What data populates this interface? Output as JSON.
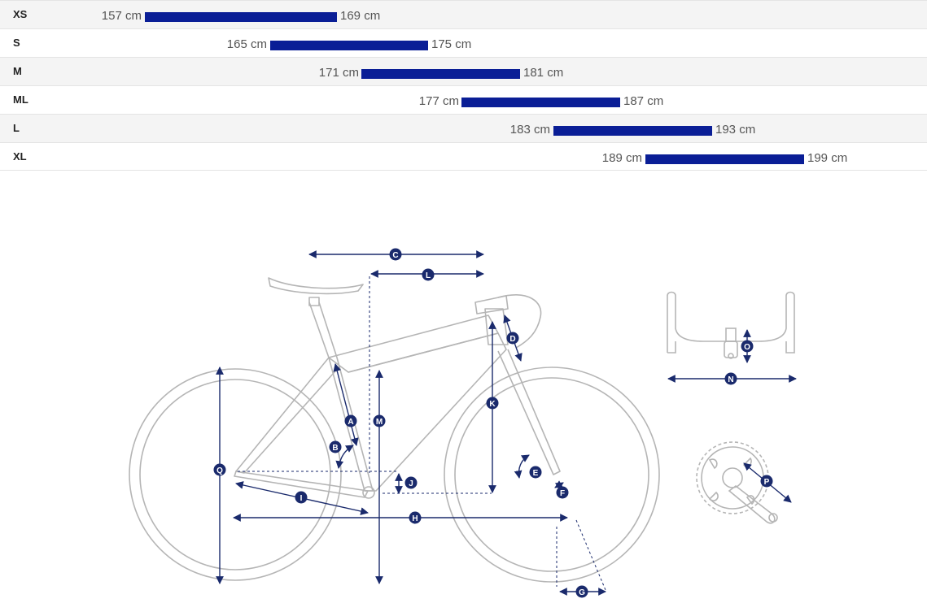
{
  "size_chart": {
    "rows": [
      {
        "size": "XS",
        "min": "157 cm",
        "max": "169 cm",
        "min_cm": 157,
        "max_cm": 169
      },
      {
        "size": "S",
        "min": "165 cm",
        "max": "175 cm",
        "min_cm": 165,
        "max_cm": 175
      },
      {
        "size": "M",
        "min": "171 cm",
        "max": "181 cm",
        "min_cm": 171,
        "max_cm": 181
      },
      {
        "size": "ML",
        "min": "177 cm",
        "max": "187 cm",
        "min_cm": 177,
        "max_cm": 187
      },
      {
        "size": "L",
        "min": "183 cm",
        "max": "193 cm",
        "min_cm": 183,
        "max_cm": 193
      },
      {
        "size": "XL",
        "min": "189 cm",
        "max": "199 cm",
        "min_cm": 189,
        "max_cm": 199
      }
    ]
  },
  "geometry_labels": {
    "A": "A",
    "B": "B",
    "C": "C",
    "D": "D",
    "E": "E",
    "F": "F",
    "G": "G",
    "H": "H",
    "I": "I",
    "J": "J",
    "K": "K",
    "L": "L",
    "M": "M",
    "N": "N",
    "O": "O",
    "P": "P",
    "Q": "Q"
  },
  "colors": {
    "bar": "#0a1e96",
    "marker": "#1a2a6c",
    "frame_line": "#b5b5b5",
    "text": "#555555"
  }
}
